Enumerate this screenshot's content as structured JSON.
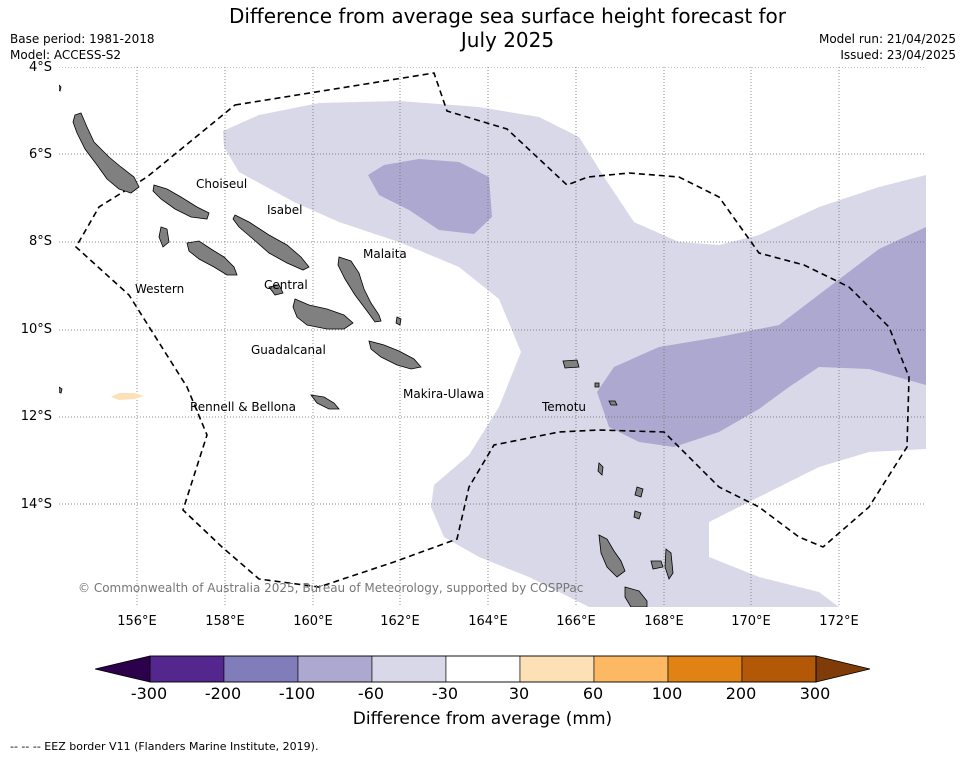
{
  "header": {
    "title_line1": "Difference from average sea surface height forecast for",
    "title_line2": "July 2025",
    "base_period": "Base period: 1981-2018",
    "model": "Model: ACCESS-S2",
    "model_run": "Model run: 21/04/2025",
    "issued": "Issued: 23/04/2025"
  },
  "axes": {
    "lat_labels": [
      "4°S",
      "6°S",
      "8°S",
      "10°S",
      "12°S",
      "14°S"
    ],
    "lon_labels": [
      "156°E",
      "158°E",
      "160°E",
      "162°E",
      "164°E",
      "166°E",
      "168°E",
      "170°E",
      "172°E"
    ]
  },
  "map": {
    "places": [
      "Choiseul",
      "Isabel",
      "Malaita",
      "Western",
      "Central",
      "Guadalcanal",
      "Makira-Ulawa",
      "Rennell & Bellona",
      "Temotu"
    ],
    "copyright": "© Commonwealth of Australia 2025, Bureau of Meteorology, supported by COSPPac"
  },
  "colorbar": {
    "title": "Difference from average (mm)",
    "ticks": [
      "-300",
      "-200",
      "-100",
      "-60",
      "-30",
      "30",
      "60",
      "100",
      "200",
      "300"
    ],
    "colors": [
      "#54278f",
      "#807dba",
      "#aca8d0",
      "#d8d8e8",
      "#ffffff",
      "#fee0b6",
      "#fdb863",
      "#e08214",
      "#b35806"
    ],
    "under_color": "#2d004b",
    "over_color": "#7f3b08"
  },
  "footer": {
    "eez_note": "--  --  -- EEZ border V11 (Flanders Marine Institute, 2019)."
  }
}
